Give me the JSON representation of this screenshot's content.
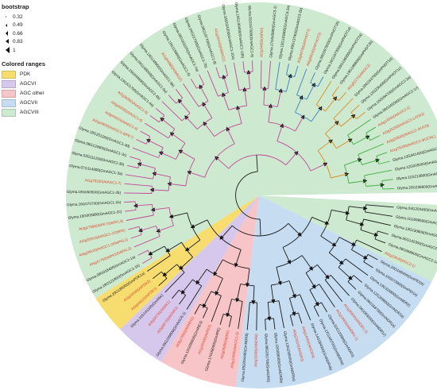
{
  "legend": {
    "bootstrap_title": "bootstrap",
    "bootstrap_values": [
      "0.32",
      "0.49",
      "0.66",
      "0.83",
      "1"
    ],
    "ranges_title": "Colored ranges",
    "ranges": [
      {
        "label": "PDK",
        "color": "#f7dd6f"
      },
      {
        "label": "AGCVI",
        "color": "#d6c8ec"
      },
      {
        "label": "AGC other",
        "color": "#f7c4c7"
      },
      {
        "label": "AGCVII",
        "color": "#c5dcf1"
      },
      {
        "label": "AGCVIII",
        "color": "#cde9cf"
      }
    ]
  },
  "colors": {
    "arabidopsis_label": "#e0452b",
    "soybean_label": "#1a1a1a",
    "branch_black": "#1a1a1a",
    "branch_pink": "#c2479a",
    "branch_blue": "#3e7fc1",
    "branch_orange": "#e08a1e",
    "branch_green": "#3fae3f"
  },
  "tree": {
    "leaves": [
      {
        "label": "Glyma.04G203400(GmAGC1-1)",
        "species": "Gm",
        "clade": "AGCVIII"
      },
      {
        "label": "Glyma.11G099500(GmAGC1-1b)",
        "species": "Gm",
        "clade": "AGCVIII"
      },
      {
        "label": "Glyma.13G130800(GmAGC2-1c)",
        "species": "Gm",
        "clade": "AGCVIII"
      },
      {
        "label": "Glyma.06G142300(GmAGC2-1b)",
        "species": "Gm",
        "clade": "AGCVIII"
      },
      {
        "label": "Glyma.08G068600(GmAGC2-1a)",
        "species": "Gm",
        "clade": "AGCVIII"
      },
      {
        "label": "At2g23630(AGC2-1)",
        "species": "At",
        "clade": "AGCVIII"
      },
      {
        "label": "Glyma.20G168400(GmPID1b)",
        "species": "Gm",
        "clade": "AGCVII"
      },
      {
        "label": "Glyma.10G073900(GmPID1a)",
        "species": "Gm",
        "clade": "AGCVII"
      },
      {
        "label": "Glyma.13G315800(GmNDR2)",
        "species": "Gm",
        "clade": "AGCVII"
      },
      {
        "label": "Glyma.12G209800(GmNDR1b)",
        "species": "Gm",
        "clade": "AGCVII"
      },
      {
        "label": "Glyma.06G168700(GmNDR1a)",
        "species": "Gm",
        "clade": "AGCVII"
      },
      {
        "label": "Glyma.04G093000(GmNDR1c)",
        "species": "Gm",
        "clade": "AGCVII"
      },
      {
        "label": "At1g30640(AtNDR1-2)",
        "species": "At",
        "clade": "AGCVII"
      },
      {
        "label": "At2g19400(AtNDR1-1)",
        "species": "At",
        "clade": "AGCVII"
      },
      {
        "label": "Glyma.02G125900(GmNDR3)",
        "species": "Gm",
        "clade": "AGCVII"
      },
      {
        "label": "Glyma.17G240700(GmNDR4a)",
        "species": "Gm",
        "clade": "AGCVII"
      },
      {
        "label": "Glyma.14G084000(GmNDR4b)",
        "species": "Gm",
        "clade": "AGCVII"
      },
      {
        "label": "At4g14350(AtNDR4)",
        "species": "At",
        "clade": "AGCVII"
      },
      {
        "label": "At3g23310(AtNDR3)",
        "species": "At",
        "clade": "AGCVII"
      },
      {
        "label": "Glyma.13G238000(GmNDR5a)",
        "species": "Gm",
        "clade": "AGCVII"
      },
      {
        "label": "Glyma.15G098400(GmNDR5b)",
        "species": "Gm",
        "clade": "AGCVII"
      },
      {
        "label": "Glyma.08G261700(GmNDR6)",
        "species": "Gm",
        "clade": "AGCVII"
      },
      {
        "label": "At4g33080(AtNDR6)",
        "species": "At",
        "clade": "AGCVII"
      },
      {
        "label": "Glyma.05G094400(GmNDR8)",
        "species": "Gm",
        "clade": "AGCVII"
      },
      {
        "label": "At3g12690(AtAGC1-5)",
        "species": "At",
        "clade": "AGC other"
      },
      {
        "label": "At5g09890(AtIRE)",
        "species": "At",
        "clade": "AGC other"
      },
      {
        "label": "Glyma.17G090000(GmIRE)",
        "species": "Gm",
        "clade": "AGC other"
      },
      {
        "label": "At1g48490(AtIRE3)",
        "species": "At",
        "clade": "AGC other"
      },
      {
        "label": "Glyma.12G098600(GmIRE3)",
        "species": "Gm",
        "clade": "AGC other"
      },
      {
        "label": "At3g17850(AtIREH1)",
        "species": "At",
        "clade": "AGC other"
      },
      {
        "label": "Glyma.05G105800(GmAGC6-1)",
        "species": "Gm",
        "clade": "AGCVI"
      },
      {
        "label": "At3g08720(AtS6K2)",
        "species": "At",
        "clade": "AGCVI"
      },
      {
        "label": "At3g08730(AtS6K1)",
        "species": "At",
        "clade": "AGCVI"
      },
      {
        "label": "Glyma.11G141100(GmS6K)",
        "species": "Gm",
        "clade": "AGCVI"
      },
      {
        "label": "At5g04510(AtPDK1)",
        "species": "At",
        "clade": "PDK"
      },
      {
        "label": "At3g10540(AtPDK2)",
        "species": "At",
        "clade": "PDK"
      },
      {
        "label": "Glyma.20G185000(GmPDK1a)",
        "species": "Gm",
        "clade": "PDK"
      },
      {
        "label": "Glyma.19G121900(GmAGC1-1b)",
        "species": "Gm",
        "clade": "AGCVIII"
      },
      {
        "label": "Glyma.09G018400(GmAGC1-1a)",
        "species": "Gm",
        "clade": "AGCVIII"
      },
      {
        "label": "At5g47750(AtPK5/D6PKL2)",
        "species": "At",
        "clade": "AGCVIII"
      },
      {
        "label": "At4g26610(AtAGC1-2/D6PKL1)",
        "species": "At",
        "clade": "AGCVIII"
      },
      {
        "label": "At5g55910(AtAGC1-1/D6PK)",
        "species": "At",
        "clade": "AGCVIII"
      },
      {
        "label": "At3g27580(AtPK7/D6PKL3)",
        "species": "At",
        "clade": "AGCVIII"
      },
      {
        "label": "Glyma.19G003800(GmAGC1-2c)",
        "species": "Gm",
        "clade": "AGCVIII"
      },
      {
        "label": "Glyma.16G070700(GmAGC1-2a)",
        "species": "Gm",
        "clade": "AGCVIII"
      },
      {
        "label": "Glyma.19G060500(GmAGC1-2b)",
        "species": "Gm",
        "clade": "AGCVIII"
      },
      {
        "label": "At1g79250(AtAGC1-7)",
        "species": "At",
        "clade": "AGCVIII"
      },
      {
        "label": "Glyma.07G114800(GmAGC1-3a)",
        "species": "Gm",
        "clade": "AGCVIII"
      },
      {
        "label": "Glyma.03G111200(GmAGC1-3b)",
        "species": "Gm",
        "clade": "AGCVIII"
      },
      {
        "label": "Glyma.09G124900(GmAGC1-3c)",
        "species": "Gm",
        "clade": "AGCVIII"
      },
      {
        "label": "Glyma.18G251200(GmAGC1-3d)",
        "species": "Gm",
        "clade": "AGCVIII"
      },
      {
        "label": "At2g44830(AtAGC1-8/PK7)",
        "species": "At",
        "clade": "AGCVIII"
      },
      {
        "label": "At3g44610(AtAGC1-6)",
        "species": "At",
        "clade": "AGCVIII"
      },
      {
        "label": "At5g40030(AtAGC1-4)",
        "species": "At",
        "clade": "AGCVIII"
      },
      {
        "label": "At2g36350(AtAGC1-9)",
        "species": "At",
        "clade": "AGCVIII"
      },
      {
        "label": "Glyma.13G321700(GmAGC1-4a)",
        "species": "Gm",
        "clade": "AGCVIII"
      },
      {
        "label": "Glyma.15G044600(GmAGC1-4b)",
        "species": "Gm",
        "clade": "AGCVIII"
      },
      {
        "label": "Glyma.03G148000(GmAGC1-5a)",
        "species": "Gm",
        "clade": "AGCVIII"
      },
      {
        "label": "Glyma.19G148900(GmAGC1-5b)",
        "species": "Gm",
        "clade": "AGCVIII"
      },
      {
        "label": "At1g54080(AtWAG2)",
        "species": "At",
        "clade": "AGCVIII"
      },
      {
        "label": "Glyma.15G115900(GmAGC1-6)",
        "species": "Gm",
        "clade": "AGCVIII"
      },
      {
        "label": "Glyma.06G163100(GmAGC1-7a)",
        "species": "Gm",
        "clade": "AGCVIII"
      },
      {
        "label": "Glyma.04G217000(GmAGC1-7b)",
        "species": "Gm",
        "clade": "AGCVIII"
      },
      {
        "label": "Glyma.09G197700(GmAGC1-8)",
        "species": "Gm",
        "clade": "AGCVIII"
      },
      {
        "label": "At1g16440(AtWAG1)",
        "species": "At",
        "clade": "AGCVIII"
      },
      {
        "label": "Glyma.18G034200(GmAGC1-10a)",
        "species": "Gm",
        "clade": "AGCVIII"
      },
      {
        "label": "Glyma.10G130400(GmAGC1-10b)",
        "species": "Gm",
        "clade": "AGCVIII"
      },
      {
        "label": "Glyma.01G157600(GmAGC1-9)",
        "species": "Gm",
        "clade": "AGCVIII"
      },
      {
        "label": "At2g34650(AtPID)",
        "species": "At",
        "clade": "AGCVIII"
      },
      {
        "label": "Glyma.17G045800(GmAGC3-1)",
        "species": "Gm",
        "clade": "AGCVIII"
      },
      {
        "label": "Glyma.15G153800(GmAGC3-2a)",
        "species": "Gm",
        "clade": "AGCVIII"
      },
      {
        "label": "Glyma.09G137400(GmAGC3-2b)",
        "species": "Gm",
        "clade": "AGCVIII"
      },
      {
        "label": "At3g45780(AtPHOT1)",
        "species": "At",
        "clade": "AGCVIII"
      },
      {
        "label": "At5g58140(AtPHOT2)",
        "species": "At",
        "clade": "AGCVIII"
      },
      {
        "label": "Glyma.09G097800(GmPHOT1b)",
        "species": "Gm",
        "clade": "AGCVIII"
      },
      {
        "label": "Glyma.16G187300(GmPHOT1a)",
        "species": "Gm",
        "clade": "AGCVIII"
      },
      {
        "label": "Glyma.03G196000(GmPHOT2a)",
        "species": "Gm",
        "clade": "AGCVIII"
      },
      {
        "label": "Glyma.19G198800(GmPHOT2b)",
        "species": "Gm",
        "clade": "AGCVIII"
      },
      {
        "label": "At1g51170(AtAGC2)",
        "species": "At",
        "clade": "AGCVIII"
      },
      {
        "label": "Glyma.20G243700(GmPHOT1d)",
        "species": "Gm",
        "clade": "AGCVIII"
      },
      {
        "label": "Glyma.13G230400(GmPHOT1c)",
        "species": "Gm",
        "clade": "AGCVIII"
      },
      {
        "label": "Glyma.16G094700(GmAGC2-2a)",
        "species": "Gm",
        "clade": "AGCVIII"
      },
      {
        "label": "Glyma.08G345500(GmAGC2-1c)",
        "species": "Gm",
        "clade": "AGCVIII"
      },
      {
        "label": "At4g13000(AtAGC2-2)",
        "species": "At",
        "clade": "AGCVIII"
      },
      {
        "label": "At3g25250(AtAGC2-1/OXI1)",
        "species": "At",
        "clade": "AGCVIII"
      },
      {
        "label": "At3g20830(AtAGC2-4/UCN)",
        "species": "At",
        "clade": "AGCVIII"
      },
      {
        "label": "At1g79250(AtAGC2-3/UCNL)",
        "species": "At",
        "clade": "AGCVIII"
      },
      {
        "label": "Glyma.13G341400(GmAGC2-3b)",
        "species": "Gm",
        "clade": "AGCVIII"
      },
      {
        "label": "Glyma.12G005000(GmAGC2-3a)",
        "species": "Gm",
        "clade": "AGCVIII"
      },
      {
        "label": "Glyma.11G213800(GmAGC2-2b)",
        "species": "Gm",
        "clade": "AGCVIII"
      },
      {
        "label": "Glyma.20G238600(GmAGC2-2c)",
        "species": "Gm",
        "clade": "AGCVIII"
      }
    ]
  }
}
